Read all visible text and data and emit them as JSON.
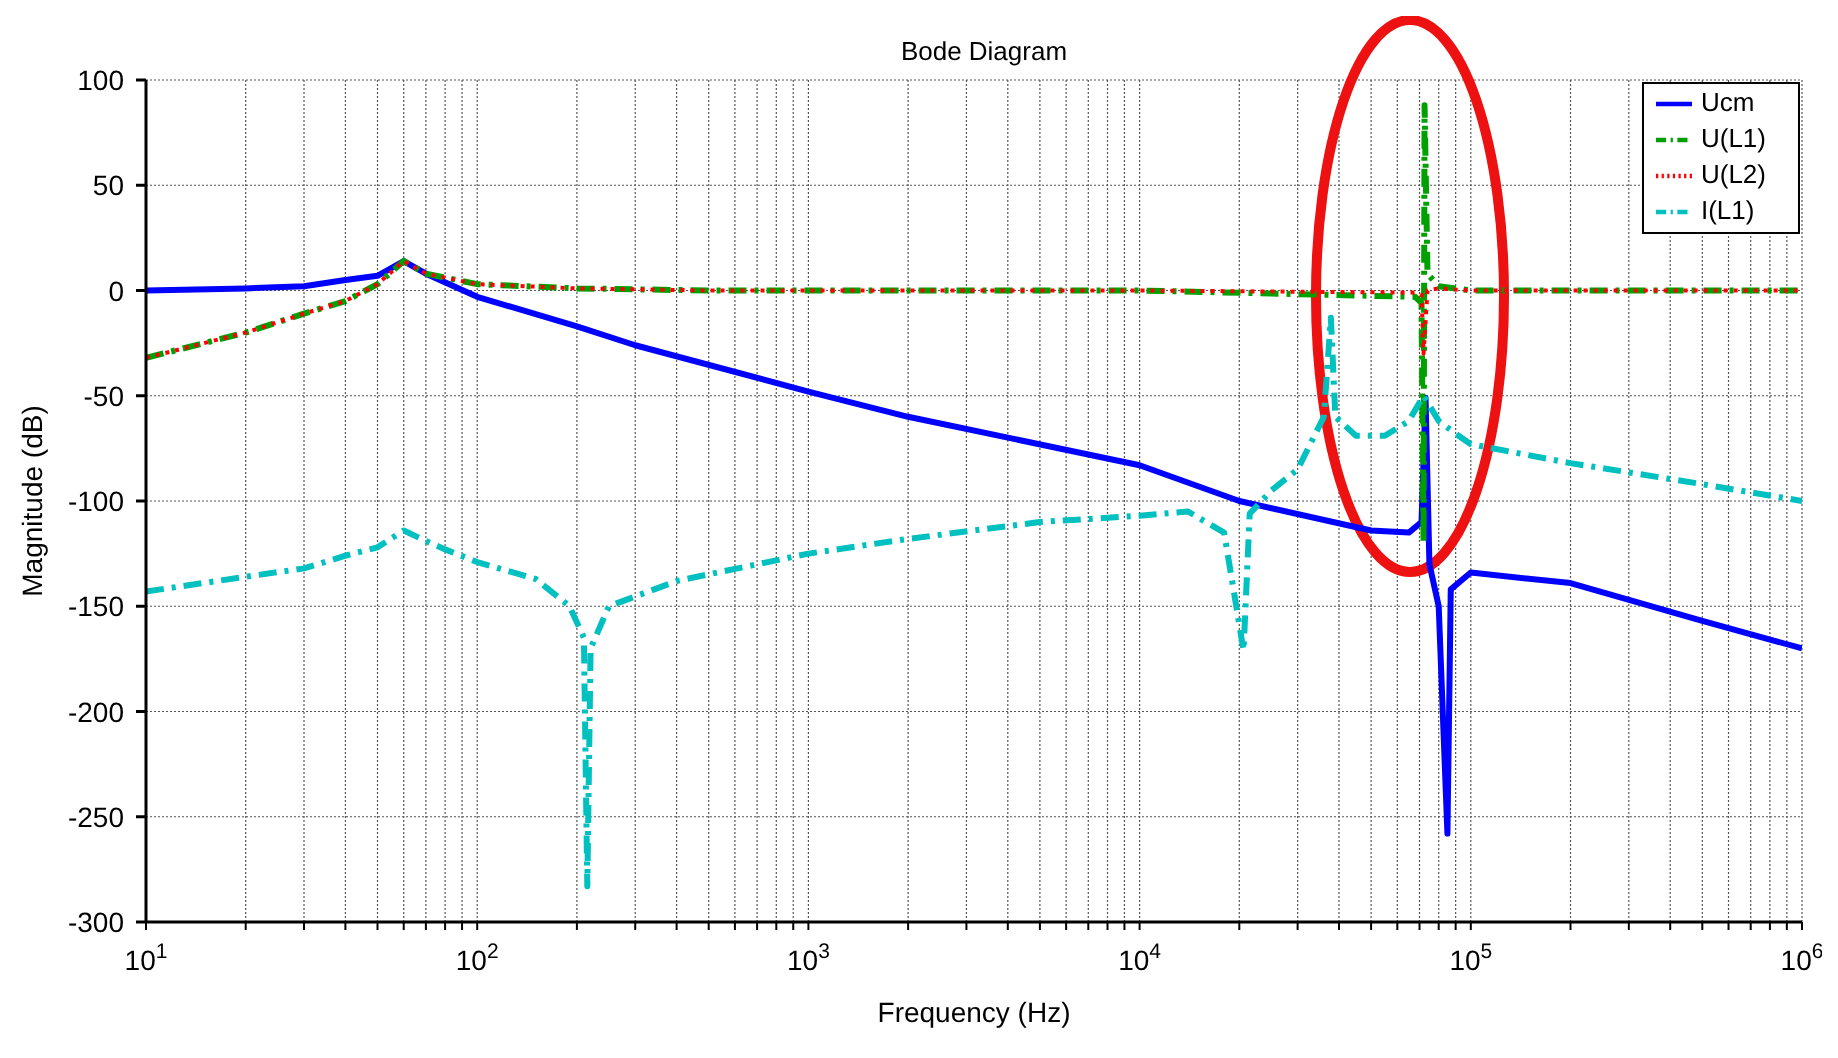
{
  "chart_data": {
    "type": "line",
    "title": "Bode Diagram",
    "xlabel": "Frequency  (Hz)",
    "ylabel": "Magnitude (dB)",
    "log": "x",
    "grid": true,
    "legend": "top right",
    "marker": "none",
    "xlim": [
      10,
      1000000
    ],
    "ylim": [
      -300,
      100
    ],
    "yticks": [
      -300,
      -250,
      -200,
      -150,
      -100,
      -50,
      0,
      50,
      100
    ],
    "xticks": [
      {
        "value": 10,
        "label": "10$^{1}$"
      },
      {
        "value": 20,
        "label": null
      },
      {
        "value": 30,
        "label": null
      },
      {
        "value": 40,
        "label": null
      },
      {
        "value": 50,
        "label": null
      },
      {
        "value": 60,
        "label": null
      },
      {
        "value": 70,
        "label": null
      },
      {
        "value": 80,
        "label": null
      },
      {
        "value": 90,
        "label": null
      },
      {
        "value": 100,
        "label": "10$^{2}$"
      },
      {
        "value": 200,
        "label": null
      },
      {
        "value": 300,
        "label": null
      },
      {
        "value": 400,
        "label": null
      },
      {
        "value": 500,
        "label": null
      },
      {
        "value": 600,
        "label": null
      },
      {
        "value": 700,
        "label": null
      },
      {
        "value": 800,
        "label": null
      },
      {
        "value": 900,
        "label": null
      },
      {
        "value": 1000,
        "label": "10$^{3}$"
      },
      {
        "value": 2000,
        "label": null
      },
      {
        "value": 3000,
        "label": null
      },
      {
        "value": 4000,
        "label": null
      },
      {
        "value": 5000,
        "label": null
      },
      {
        "value": 6000,
        "label": null
      },
      {
        "value": 7000,
        "label": null
      },
      {
        "value": 8000,
        "label": null
      },
      {
        "value": 9000,
        "label": null
      },
      {
        "value": 10000,
        "label": "10$^{4}$"
      },
      {
        "value": 20000,
        "label": null
      },
      {
        "value": 30000,
        "label": null
      },
      {
        "value": 40000,
        "label": null
      },
      {
        "value": 50000,
        "label": null
      },
      {
        "value": 60000,
        "label": null
      },
      {
        "value": 70000,
        "label": null
      },
      {
        "value": 80000,
        "label": null
      },
      {
        "value": 90000,
        "label": null
      },
      {
        "value": 100000,
        "label": "10$^{5}$"
      },
      {
        "value": 200000,
        "label": null
      },
      {
        "value": 300000,
        "label": null
      },
      {
        "value": 400000,
        "label": null
      },
      {
        "value": 500000,
        "label": null
      },
      {
        "value": 600000,
        "label": null
      },
      {
        "value": 700000,
        "label": null
      },
      {
        "value": 800000,
        "label": null
      },
      {
        "value": 900000,
        "label": null
      },
      {
        "value": 1000000,
        "label": "10$^{6}$"
      }
    ],
    "series": [
      {
        "name": "Ucm",
        "color": "#0000ff",
        "line_style": "solid",
        "x": [
          10,
          20,
          30,
          40,
          50,
          60,
          70,
          100,
          200,
          300,
          1000,
          2000,
          10000,
          20000,
          50000,
          65000,
          71000,
          73000,
          75000,
          80000,
          85000,
          87000,
          100000,
          200000,
          500000,
          1000000
        ],
        "values": [
          0,
          1,
          2,
          5,
          7,
          14,
          8,
          -3,
          -17,
          -26,
          -48,
          -60,
          -83,
          -100,
          -114,
          -115,
          -110,
          -51,
          -130,
          -150,
          -258,
          -142,
          -134,
          -139,
          -157,
          -170
        ]
      },
      {
        "name": "U(L1)",
        "color": "#00a000",
        "line_style": "dashed",
        "x": [
          10,
          20,
          30,
          40,
          50,
          60,
          70,
          100,
          200,
          500,
          1000,
          10000,
          68000,
          71000,
          72000,
          72500,
          74000,
          80000,
          100000,
          1000000
        ],
        "values": [
          -32,
          -20,
          -11,
          -5,
          3,
          14,
          8,
          3,
          1,
          0,
          0,
          0,
          -3,
          -6,
          -120,
          88,
          8,
          2,
          0,
          0
        ]
      },
      {
        "name": "U(L2)",
        "color": "#ff0000",
        "line_style": "dotted",
        "x": [
          10,
          20,
          30,
          40,
          50,
          60,
          70,
          100,
          200,
          500,
          1000,
          10000,
          68000,
          71000,
          72000,
          74000,
          80000,
          100000,
          1000000
        ],
        "values": [
          -32,
          -20,
          -11,
          -5,
          3,
          14,
          8,
          3,
          1,
          0,
          0,
          0,
          -1,
          -2,
          -30,
          0,
          1,
          0,
          0
        ]
      },
      {
        "name": "I(L1)",
        "color": "#00c0c0",
        "line_style": "dashed",
        "x": [
          10,
          20,
          30,
          40,
          50,
          60,
          70,
          80,
          100,
          150,
          190,
          210,
          215,
          220,
          250,
          400,
          1000,
          2000,
          5000,
          10000,
          14000,
          18000,
          20600,
          21500,
          25000,
          30000,
          36000,
          37800,
          39000,
          45000,
          55000,
          65000,
          72000,
          80000,
          90000,
          100000,
          200000,
          500000,
          1000000
        ],
        "values": [
          -143,
          -136,
          -132,
          -126,
          -122,
          -114,
          -119,
          -123,
          -129,
          -137,
          -150,
          -165,
          -283,
          -170,
          -150,
          -138,
          -125,
          -118,
          -110,
          -107,
          -105,
          -115,
          -171,
          -106,
          -95,
          -85,
          -60,
          -13,
          -60,
          -69,
          -69,
          -62,
          -50,
          -62,
          -68,
          -73,
          -82,
          -92,
          -100
        ]
      }
    ]
  }
}
